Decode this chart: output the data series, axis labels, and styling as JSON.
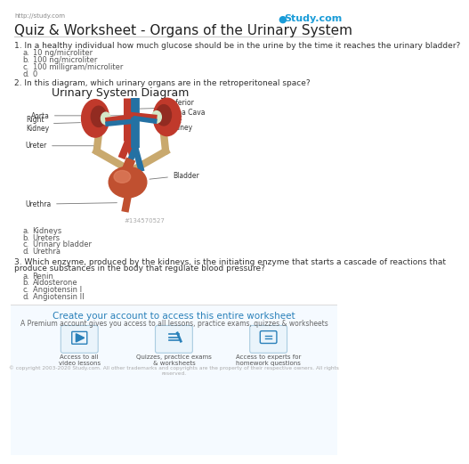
{
  "title": "Quiz & Worksheet - Organs of the Urinary System",
  "header_url": "http://study.com",
  "header_brand": "● Study.com",
  "bg_color": "#ffffff",
  "q1_text": "1. In a healthy individual how much glucose should be in the urine by the time it reaches the urinary bladder?",
  "q1_options": [
    [
      "a.",
      "10 ng/microliter"
    ],
    [
      "b.",
      "100 ng/microliter"
    ],
    [
      "c.",
      "100 milligram/microliter"
    ],
    [
      "d.",
      "0"
    ]
  ],
  "q2_text": "2. In this diagram, which urinary organs are in the retroperitoneal space?",
  "diagram_title": "Urinary System Diagram",
  "q2_options": [
    [
      "a.",
      "Kidneys"
    ],
    [
      "b.",
      "Ureters"
    ],
    [
      "c.",
      "Urinary bladder"
    ],
    [
      "d.",
      "Urethra"
    ]
  ],
  "q3_text": "3. Which enzyme, produced by the kidneys, is the initiating enzyme that starts a cascade of reactions that produce substances in the body that regulate blood pressure?",
  "q3_options": [
    [
      "a.",
      "Renin"
    ],
    [
      "b.",
      "Aldosterone"
    ],
    [
      "c.",
      "Angiotensin I"
    ],
    [
      "d.",
      "Angiotensin II"
    ]
  ],
  "footer_text": "Create your account to access this entire worksheet",
  "footer_sub": "A Premium account gives you access to all lessons, practice exams, quizzes & worksheets",
  "footer_icons": [
    "Access to all\nvideo lessons",
    "Quizzes, practice exams\n& worksheets",
    "Access to experts for\nhomework questions"
  ],
  "copyright": "© copyright 2003-2020 Study.com. All other trademarks and copyrights are the property of their respective owners. All rights\nreserved.",
  "watermark_id": "#134570527",
  "kidney_color": "#c0392b",
  "kidney_dark": "#922b21",
  "kidney_hilum_bg": "#d4e8d0",
  "vessel_red": "#c0392b",
  "vessel_blue": "#2471a3",
  "vessel_tan": "#c9a96e",
  "bladder_color": "#c0552b",
  "bladder_highlight": "#e07050"
}
